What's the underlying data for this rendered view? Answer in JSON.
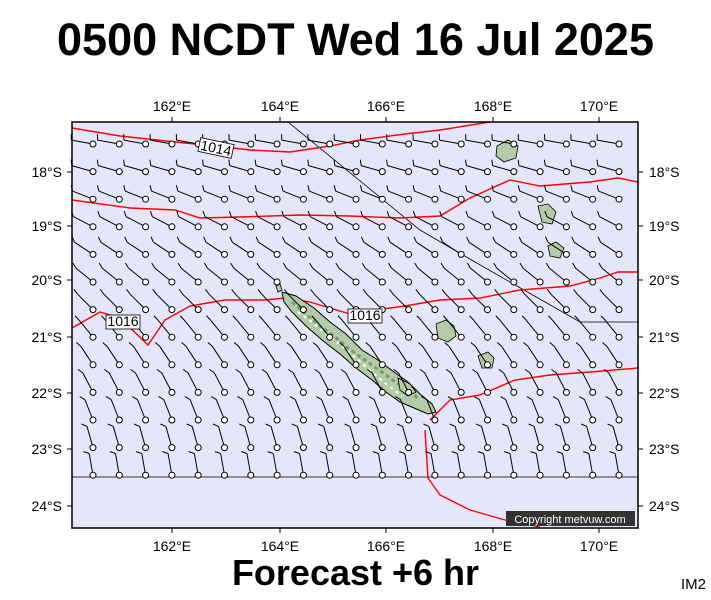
{
  "title": "0500 NCDT Wed 16 Jul 2025",
  "footer": "Forecast +6 hr",
  "corner_label": "IM2",
  "copyright": "Copyright metvuw.com",
  "longitudes": [
    "162°E",
    "164°E",
    "166°E",
    "168°E",
    "170°E"
  ],
  "latitudes": [
    "18°S",
    "19°S",
    "20°S",
    "21°S",
    "22°S",
    "23°S",
    "24°S"
  ],
  "isobar_labels": [
    "1014",
    "1016",
    "1016"
  ],
  "colors": {
    "ocean": "#e6e6fb",
    "isobar": "#ff0000",
    "land": "#b4cba8",
    "land_relief": "#7c9a72",
    "coast": "#000000"
  }
}
